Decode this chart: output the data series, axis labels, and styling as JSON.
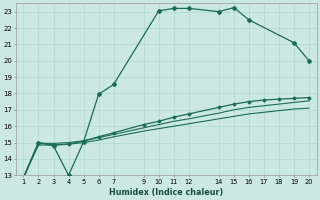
{
  "xlabel": "Humidex (Indice chaleur)",
  "bg_color": "#cce8e4",
  "grid_color": "#b0d8d0",
  "line_color": "#1a6b5a",
  "xlim": [
    0.5,
    20.5
  ],
  "ylim": [
    13,
    23.5
  ],
  "xticks": [
    1,
    2,
    3,
    4,
    5,
    6,
    7,
    9,
    10,
    11,
    12,
    14,
    15,
    16,
    17,
    18,
    19,
    20
  ],
  "yticks": [
    13,
    14,
    15,
    16,
    17,
    18,
    19,
    20,
    21,
    22,
    23
  ],
  "line1_x": [
    1,
    2,
    3,
    4,
    5,
    6,
    7,
    10,
    11,
    12,
    14,
    15,
    16,
    19,
    20
  ],
  "line1_y": [
    12.85,
    15.0,
    14.8,
    13.0,
    15.05,
    17.95,
    18.55,
    23.05,
    23.2,
    23.2,
    23.0,
    23.25,
    22.5,
    21.1,
    20.0
  ],
  "line2_x": [
    1,
    2,
    3,
    4,
    5,
    6,
    7,
    9,
    10,
    11,
    12,
    14,
    15,
    16,
    17,
    18,
    19,
    20
  ],
  "line2_y": [
    12.85,
    15.0,
    14.85,
    14.9,
    15.1,
    15.35,
    15.6,
    16.1,
    16.3,
    16.55,
    16.75,
    17.15,
    17.35,
    17.5,
    17.6,
    17.65,
    17.7,
    17.75
  ],
  "line3_x": [
    1,
    2,
    3,
    4,
    5,
    6,
    7,
    9,
    10,
    11,
    12,
    14,
    15,
    16,
    17,
    18,
    19,
    20
  ],
  "line3_y": [
    12.85,
    14.95,
    14.95,
    15.0,
    15.1,
    15.3,
    15.5,
    15.9,
    16.1,
    16.3,
    16.45,
    16.8,
    17.0,
    17.15,
    17.25,
    17.35,
    17.45,
    17.55
  ],
  "line4_x": [
    1,
    2,
    3,
    4,
    5,
    6,
    7,
    9,
    10,
    11,
    12,
    14,
    15,
    16,
    17,
    18,
    19,
    20
  ],
  "line4_y": [
    12.85,
    14.85,
    14.85,
    14.9,
    15.0,
    15.15,
    15.35,
    15.7,
    15.85,
    16.0,
    16.15,
    16.45,
    16.6,
    16.75,
    16.85,
    16.95,
    17.05,
    17.1
  ]
}
